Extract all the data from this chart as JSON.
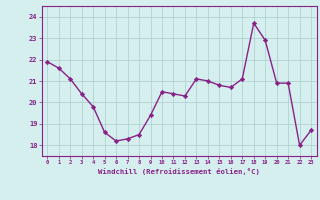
{
  "x": [
    0,
    1,
    2,
    3,
    4,
    5,
    6,
    7,
    8,
    9,
    10,
    11,
    12,
    13,
    14,
    15,
    16,
    17,
    18,
    19,
    20,
    21,
    22,
    23
  ],
  "y": [
    21.9,
    21.6,
    21.1,
    20.4,
    19.8,
    18.6,
    18.2,
    18.3,
    18.5,
    19.4,
    20.5,
    20.4,
    20.3,
    21.1,
    21.0,
    20.8,
    20.7,
    21.1,
    23.7,
    22.9,
    20.9,
    20.9,
    18.0,
    18.7
  ],
  "line_color": "#882288",
  "marker": "D",
  "marker_size": 2.2,
  "line_width": 1.0,
  "bg_color": "#d5eeee",
  "grid_color": "#aacccc",
  "xlabel": "Windchill (Refroidissement éolien,°C)",
  "xlabel_color": "#882288",
  "tick_color": "#882288",
  "ylabel_ticks": [
    18,
    19,
    20,
    21,
    22,
    23,
    24
  ],
  "xlabel_ticks": [
    0,
    1,
    2,
    3,
    4,
    5,
    6,
    7,
    8,
    9,
    10,
    11,
    12,
    13,
    14,
    15,
    16,
    17,
    18,
    19,
    20,
    21,
    22,
    23
  ],
  "ylim": [
    17.5,
    24.5
  ],
  "xlim": [
    -0.5,
    23.5
  ]
}
